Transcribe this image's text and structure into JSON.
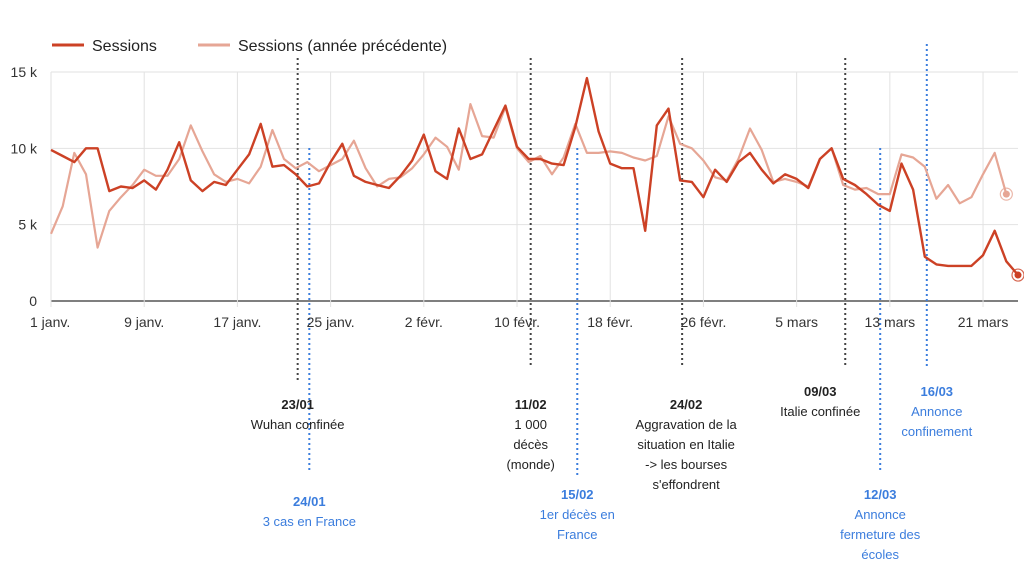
{
  "chart_data": {
    "type": "line",
    "series": [
      {
        "name": "Sessions",
        "color": "#cc4125",
        "values": [
          9900,
          9500,
          9100,
          10000,
          10000,
          7200,
          7500,
          7400,
          7900,
          7300,
          8600,
          10400,
          7900,
          7200,
          7800,
          7600,
          8600,
          9600,
          11600,
          8800,
          8900,
          8300,
          7500,
          7700,
          9100,
          10300,
          8200,
          7800,
          7600,
          7400,
          8200,
          9200,
          10900,
          8500,
          8000,
          11300,
          9300,
          9600,
          11200,
          12800,
          10100,
          9300,
          9300,
          9000,
          8900,
          11400,
          14600,
          11100,
          9000,
          8700,
          8700,
          4600,
          11500,
          12600,
          7900,
          7800,
          6800,
          8600,
          7800,
          9100,
          9700,
          8600,
          7700,
          8300,
          8000,
          7400,
          9300,
          10000,
          8000,
          7600,
          7000,
          6300,
          5900,
          9000,
          7300,
          2900,
          2400,
          2300,
          2300,
          2300,
          3000,
          4600,
          2600,
          1700
        ],
        "end_value": 1700
      },
      {
        "name": "Sessions (année précédente)",
        "color": "#e6a695",
        "values": [
          4400,
          6200,
          9700,
          8300,
          3500,
          5900,
          6800,
          7600,
          8600,
          8200,
          8200,
          9300,
          11500,
          9800,
          8300,
          7800,
          8000,
          7700,
          8800,
          11200,
          9300,
          8700,
          9100,
          8500,
          8900,
          9300,
          10500,
          8700,
          7500,
          8000,
          8100,
          8700,
          9600,
          10700,
          10100,
          8600,
          12900,
          10800,
          10700,
          12700,
          10000,
          9100,
          9500,
          8300,
          9400,
          11600,
          9700,
          9700,
          9800,
          9700,
          9400,
          9200,
          9500,
          12100,
          10300,
          10000,
          9200,
          8100,
          7900,
          9300,
          11300,
          9900,
          7800,
          8000,
          7800,
          7500,
          9300,
          10000,
          7600,
          7300,
          7400,
          7000,
          7000,
          9600,
          9400,
          8800,
          6700,
          7600,
          6400,
          6800,
          8300,
          9700,
          7000
        ],
        "end_value": 7000
      }
    ],
    "x_tick_labels": [
      "1 janv.",
      "9 janv.",
      "17 janv.",
      "25 janv.",
      "2 févr.",
      "10 févr.",
      "18 févr.",
      "26 févr.",
      "5 mars",
      "13 mars",
      "21 mars"
    ],
    "x_tick_day_index": [
      0,
      8,
      16,
      24,
      32,
      40,
      48,
      56,
      64,
      72,
      80
    ],
    "y_ticks": [
      0,
      5000,
      10000,
      15000
    ],
    "y_tick_labels": [
      "0",
      "5 k",
      "10 k",
      "15 k"
    ],
    "ylim": [
      0,
      15000
    ],
    "legend_position": "top-left",
    "annotations": [
      {
        "day": 21,
        "date": "23/01",
        "text": [
          "Wuhan confinée"
        ],
        "style": "black"
      },
      {
        "day": 22,
        "date": "24/01",
        "text": [
          "3 cas en France"
        ],
        "style": "blue"
      },
      {
        "day": 41,
        "date": "11/02",
        "text": [
          "1 000",
          "décès",
          "(monde)"
        ],
        "style": "black"
      },
      {
        "day": 45,
        "date": "15/02",
        "text": [
          "1er décès en",
          "France"
        ],
        "style": "blue"
      },
      {
        "day": 54,
        "date": "24/02",
        "text": [
          "Aggravation de la",
          "situation en Italie",
          "-> les bourses",
          "s'effondrent"
        ],
        "style": "black"
      },
      {
        "day": 68,
        "date": "09/03",
        "text": [
          "Italie confinée"
        ],
        "style": "black"
      },
      {
        "day": 71,
        "date": "12/03",
        "text": [
          "Annonce",
          "fermeture des",
          "écoles"
        ],
        "style": "blue"
      },
      {
        "day": 75,
        "date": "16/03",
        "text": [
          "Annonce",
          "confinement"
        ],
        "style": "blue"
      }
    ]
  }
}
